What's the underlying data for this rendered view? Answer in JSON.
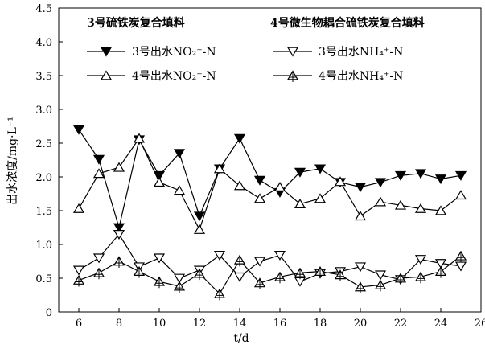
{
  "chart_data": {
    "type": "line",
    "xlabel": "t/d",
    "ylabel": "出水浓度/mg·L⁻¹",
    "xlim": [
      5,
      26
    ],
    "ylim": [
      0,
      4.5
    ],
    "xticks": [
      6,
      8,
      10,
      12,
      14,
      16,
      18,
      20,
      22,
      24,
      26
    ],
    "yticks": [
      "0",
      "0.5",
      "1.0",
      "1.5",
      "2.0",
      "2.5",
      "3.0",
      "3.5",
      "4.0",
      "4.5"
    ],
    "legend_headers": [
      "3号硫铁炭复合填料",
      "4号微生物耦合硫铁炭复合填料"
    ],
    "legend_placement": "top",
    "x": [
      6,
      7,
      8,
      9,
      10,
      11,
      12,
      13,
      14,
      15,
      16,
      17,
      18,
      19,
      20,
      21,
      22,
      23,
      24,
      25
    ],
    "series": [
      {
        "name": "3号出水NO₂⁻-N",
        "marker": "filled-down",
        "values": [
          2.7,
          2.26,
          1.25,
          2.55,
          2.02,
          2.35,
          1.42,
          2.12,
          2.57,
          1.95,
          1.77,
          2.07,
          2.12,
          1.92,
          1.85,
          1.92,
          2.02,
          2.05,
          1.97,
          2.02
        ]
      },
      {
        "name": "3号出水NH₄⁺-N",
        "marker": "open-down",
        "values": [
          0.62,
          0.8,
          1.15,
          0.67,
          0.8,
          0.5,
          0.62,
          0.84,
          0.52,
          0.75,
          0.84,
          0.45,
          0.57,
          0.6,
          0.67,
          0.55,
          0.48,
          0.78,
          0.72,
          0.68
        ]
      },
      {
        "name": "4号出水NO₂⁻-N",
        "marker": "open-up",
        "values": [
          1.53,
          2.05,
          2.14,
          2.57,
          1.92,
          1.8,
          1.22,
          2.12,
          1.87,
          1.68,
          1.85,
          1.6,
          1.68,
          1.93,
          1.42,
          1.63,
          1.58,
          1.53,
          1.5,
          1.73
        ]
      },
      {
        "name": "4号出水NH₄⁺-N",
        "marker": "cross-up",
        "values": [
          0.47,
          0.58,
          0.75,
          0.6,
          0.45,
          0.38,
          0.57,
          0.27,
          0.77,
          0.43,
          0.52,
          0.58,
          0.6,
          0.55,
          0.37,
          0.4,
          0.5,
          0.52,
          0.6,
          0.83
        ]
      }
    ]
  }
}
